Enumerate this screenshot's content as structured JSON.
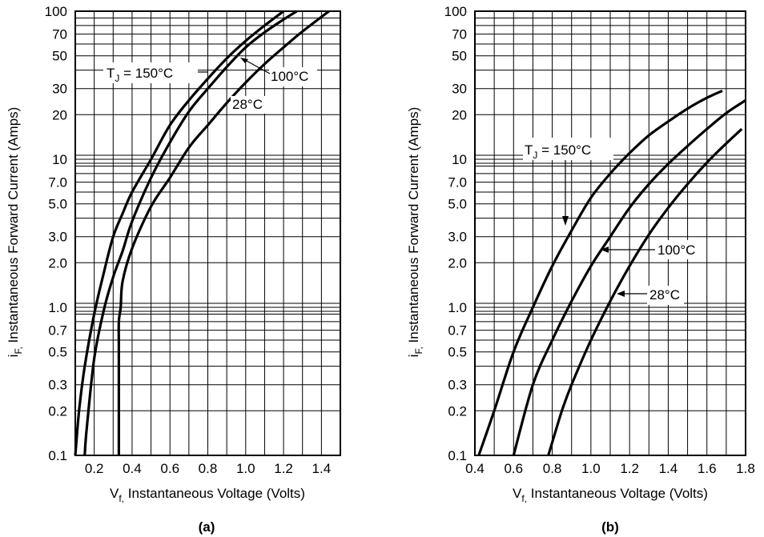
{
  "chart_data": [
    {
      "type": "line",
      "panel_label": "(a)",
      "xlabel_main": "V",
      "xlabel_sub": "f,",
      "xlabel_rest": " Instantaneous Voltage (Volts)",
      "ylabel_main": "i",
      "ylabel_sub": "F,",
      "ylabel_rest": " Instantaneous Forward Current (Amps)",
      "x_ticks": [
        "0.2",
        "0.4",
        "0.6",
        "0.8",
        "1.0",
        "1.2",
        "1.4"
      ],
      "y_ticks": [
        "0.1",
        "0.2",
        "0.3",
        "0.5",
        "0.7",
        "1.0",
        "2.0",
        "3.0",
        "5.0",
        "7.0",
        "10",
        "20",
        "30",
        "50",
        "70",
        "100"
      ],
      "xlim": [
        0.1,
        1.5
      ],
      "ylim": [
        0.1,
        100
      ],
      "yscale": "log",
      "grid": true,
      "series": [
        {
          "name": "TJ = 150°C",
          "x": [
            0.1,
            0.12,
            0.15,
            0.2,
            0.25,
            0.3,
            0.35,
            0.4,
            0.5,
            0.6,
            0.7,
            0.8,
            0.9,
            1.0,
            1.1,
            1.2
          ],
          "y": [
            0.1,
            0.2,
            0.4,
            0.9,
            1.7,
            3.0,
            4.3,
            6.0,
            10,
            17,
            25,
            35,
            48,
            63,
            80,
            100
          ]
        },
        {
          "name": "100°C",
          "x": [
            0.15,
            0.16,
            0.2,
            0.25,
            0.3,
            0.35,
            0.4,
            0.5,
            0.6,
            0.7,
            0.8,
            0.9,
            1.0,
            1.1,
            1.2,
            1.27
          ],
          "y": [
            0.1,
            0.15,
            0.45,
            0.95,
            1.6,
            2.4,
            3.8,
            7.5,
            13,
            21,
            30,
            42,
            57,
            72,
            88,
            100
          ]
        },
        {
          "name": "28°C",
          "x": [
            0.33,
            0.33,
            0.33,
            0.34,
            0.35,
            0.4,
            0.5,
            0.6,
            0.7,
            0.8,
            0.9,
            1.0,
            1.1,
            1.2,
            1.3,
            1.44
          ],
          "y": [
            0.1,
            0.5,
            0.8,
            1.0,
            1.5,
            2.5,
            4.8,
            7.5,
            12,
            17,
            24,
            33,
            44,
            57,
            73,
            100
          ]
        }
      ],
      "annotations": {
        "t150_main": "T",
        "t150_sub": "J",
        "t150_rest": " = 150°C",
        "t100": "100°C",
        "t28": "28°C"
      }
    },
    {
      "type": "line",
      "panel_label": "(b)",
      "xlabel_main": "V",
      "xlabel_sub": "f,",
      "xlabel_rest": " Instantaneous Voltage (Volts)",
      "ylabel_main": "i",
      "ylabel_sub": "F,",
      "ylabel_rest": " Instantaneous Forward Current (Amps)",
      "x_ticks": [
        "0.4",
        "0.6",
        "0.8",
        "1.0",
        "1.2",
        "1.4",
        "1.6",
        "1.8"
      ],
      "y_ticks": [
        "0.1",
        "0.2",
        "0.3",
        "0.5",
        "0.7",
        "1.0",
        "2.0",
        "3.0",
        "5.0",
        "7.0",
        "10",
        "20",
        "30",
        "50",
        "70",
        "100"
      ],
      "xlim": [
        0.4,
        1.8
      ],
      "ylim": [
        0.1,
        100
      ],
      "yscale": "log",
      "grid": true,
      "series": [
        {
          "name": "TJ = 150°C",
          "x": [
            0.42,
            0.5,
            0.6,
            0.7,
            0.8,
            0.9,
            1.0,
            1.1,
            1.2,
            1.3,
            1.4,
            1.5,
            1.6,
            1.68
          ],
          "y": [
            0.1,
            0.2,
            0.5,
            1.0,
            1.9,
            3.3,
            5.5,
            8.0,
            11,
            14.5,
            18,
            22,
            26,
            29
          ]
        },
        {
          "name": "100°C",
          "x": [
            0.6,
            0.7,
            0.8,
            0.9,
            1.0,
            1.1,
            1.2,
            1.3,
            1.4,
            1.5,
            1.6,
            1.7,
            1.8
          ],
          "y": [
            0.1,
            0.3,
            0.6,
            1.1,
            1.9,
            3.0,
            4.7,
            6.8,
            9.3,
            12.3,
            16,
            20.5,
            25
          ]
        },
        {
          "name": "28°C",
          "x": [
            0.78,
            0.85,
            0.9,
            1.0,
            1.1,
            1.2,
            1.3,
            1.4,
            1.5,
            1.6,
            1.7,
            1.78
          ],
          "y": [
            0.1,
            0.2,
            0.3,
            0.6,
            1.1,
            1.9,
            3.1,
            4.7,
            6.8,
            9.5,
            12.8,
            16
          ]
        }
      ],
      "annotations": {
        "t150_main": "T",
        "t150_sub": "J",
        "t150_rest": " = 150°C",
        "t100": "100°C",
        "t28": "28°C"
      }
    }
  ]
}
